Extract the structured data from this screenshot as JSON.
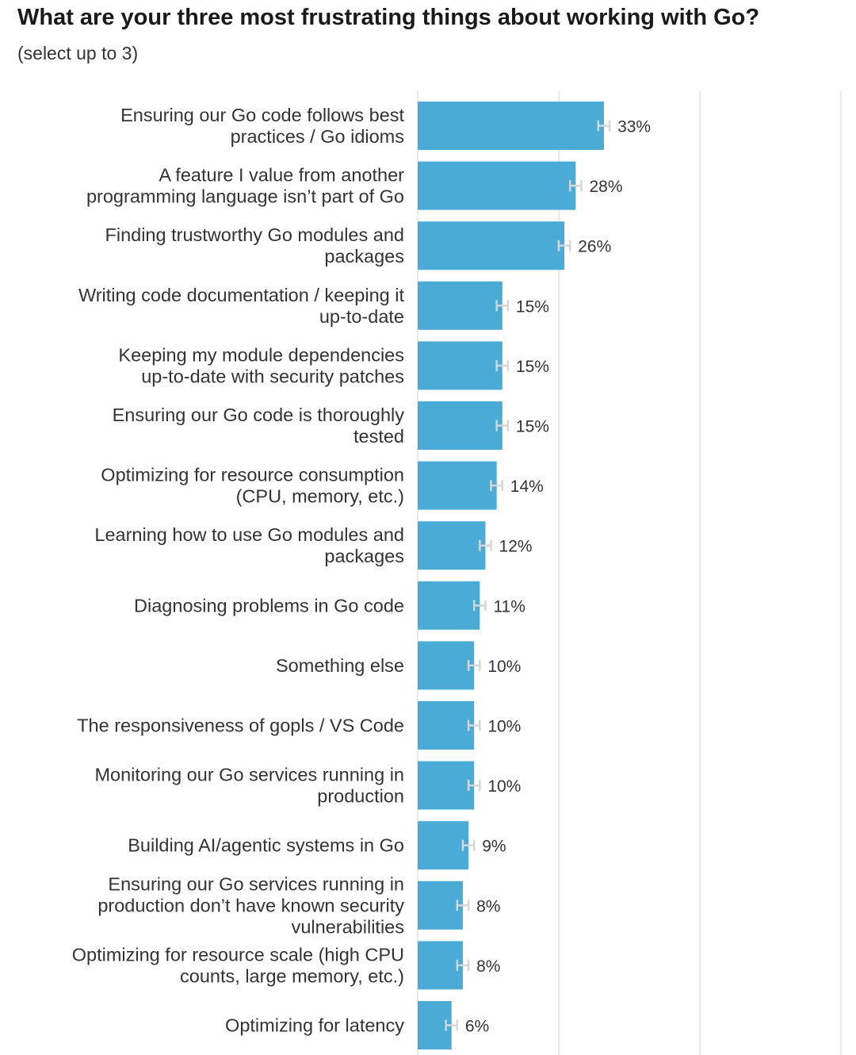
{
  "title": "What are your three most frustrating things about working with Go?",
  "subtitle": "(select up to 3)",
  "colors": {
    "bar": "#4aabd6",
    "gridline": "#e3e3e3",
    "error_bar": "#d6d6d6",
    "text": "#333333"
  },
  "chart_data": {
    "type": "bar",
    "orientation": "horizontal",
    "title": "What are your three most frustrating things about working with Go?",
    "subtitle": "(select up to 3)",
    "xlim": [
      0,
      100
    ],
    "grid": true,
    "value_suffix": "%",
    "categories": [
      [
        "Ensuring our Go code follows best",
        "practices / Go idioms"
      ],
      [
        "A feature I value from another",
        "programming language isn’t part of Go"
      ],
      [
        "Finding trustworthy Go modules and",
        "packages"
      ],
      [
        "Writing code documentation / keeping it",
        "up-to-date"
      ],
      [
        "Keeping my module dependencies",
        "up-to-date with security patches"
      ],
      [
        "Ensuring our Go code is thoroughly",
        "tested"
      ],
      [
        "Optimizing for resource consumption",
        "(CPU, memory, etc.)"
      ],
      [
        "Learning how to use Go modules and",
        "packages"
      ],
      [
        "Diagnosing problems in Go code"
      ],
      [
        "Something else"
      ],
      [
        "The responsiveness of gopls / VS Code"
      ],
      [
        "Monitoring our Go services running in",
        "production"
      ],
      [
        "Building AI/agentic systems in Go"
      ],
      [
        "Ensuring our Go services running in",
        "production don’t have known security",
        "vulnerabilities"
      ],
      [
        "Optimizing for resource scale (high CPU",
        "counts, large memory, etc.)"
      ],
      [
        "Optimizing for latency"
      ]
    ],
    "values": [
      33,
      28,
      26,
      15,
      15,
      15,
      14,
      12,
      11,
      10,
      10,
      10,
      9,
      8,
      8,
      6
    ],
    "error_margin": 1
  }
}
